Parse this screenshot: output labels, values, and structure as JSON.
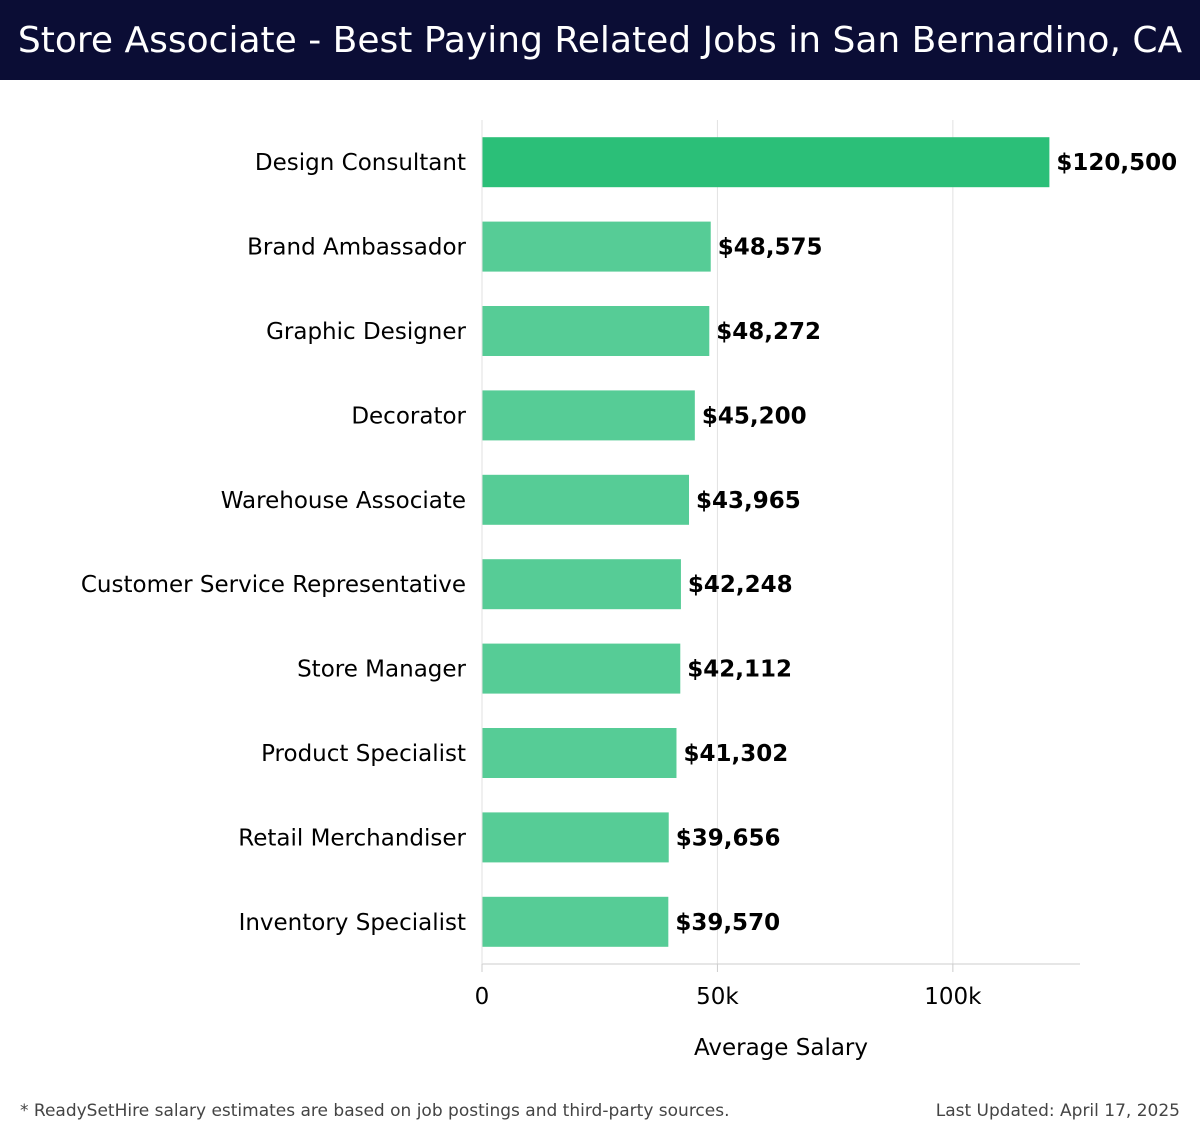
{
  "header": {
    "title": "Store Associate - Best Paying Related Jobs in San Bernardino, CA"
  },
  "chart_data": {
    "type": "bar",
    "orientation": "horizontal",
    "categories": [
      "Design Consultant",
      "Brand Ambassador",
      "Graphic Designer",
      "Decorator",
      "Warehouse Associate",
      "Customer Service Representative",
      "Store Manager",
      "Product Specialist",
      "Retail Merchandiser",
      "Inventory Specialist"
    ],
    "values": [
      120500,
      48575,
      48272,
      45200,
      43965,
      42248,
      42112,
      41302,
      39656,
      39570
    ],
    "value_labels": [
      "$120,500",
      "$48,575",
      "$48,272",
      "$45,200",
      "$43,965",
      "$42,248",
      "$42,112",
      "$41,302",
      "$39,656",
      "$39,570"
    ],
    "xlabel": "Average Salary",
    "xticks": [
      0,
      50000,
      100000
    ],
    "xtick_labels": [
      "0",
      "50k",
      "100k"
    ],
    "xlim": [
      0,
      127000
    ],
    "grid": true,
    "colors": {
      "highlight": "#2bbf78",
      "bar": "#56cc96",
      "grid": "#e2e2e2",
      "axis": "#cccccc"
    }
  },
  "footer": {
    "note": "* ReadySetHire salary estimates are based on job postings and third-party sources.",
    "updated": "Last Updated: April 17, 2025"
  }
}
